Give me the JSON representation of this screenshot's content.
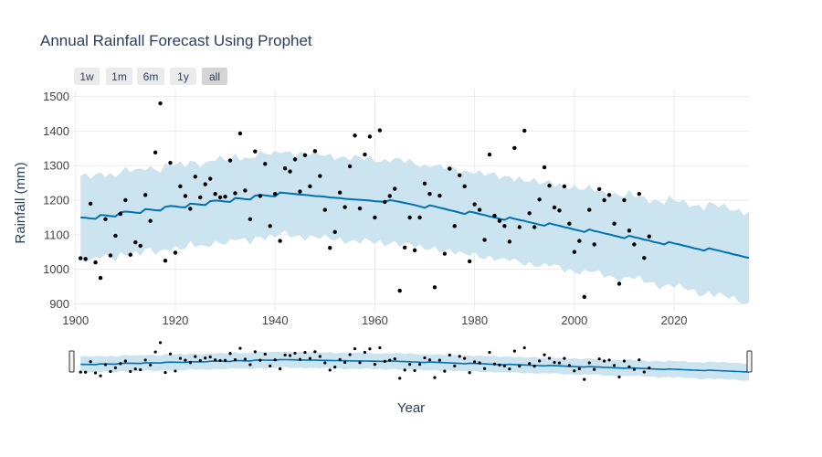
{
  "chart_data": {
    "type": "line",
    "title": "Annual Rainfall Forecast Using Prophet",
    "xlabel": "Year",
    "ylabel": "Rainfall (mm)",
    "xlim": [
      1899.5,
      2035
    ],
    "ylim": [
      880,
      1520
    ],
    "x_ticks": [
      1900,
      1920,
      1940,
      1960,
      1980,
      2000,
      2020
    ],
    "y_ticks": [
      900,
      1000,
      1100,
      1200,
      1300,
      1400,
      1500
    ],
    "grid": true,
    "range_selector": [
      "1w",
      "1m",
      "6m",
      "1y",
      "all"
    ],
    "range_selector_active": "all",
    "range_slider": true,
    "colors": {
      "forecast": "#0072b2",
      "interval": "#cce3f0",
      "actual": "#000000",
      "active_button": "#d4d4d4",
      "button": "#ebebeb"
    },
    "actual": {
      "x": [
        1901,
        1902,
        1903,
        1904,
        1905,
        1906,
        1907,
        1908,
        1909,
        1910,
        1911,
        1912,
        1913,
        1914,
        1915,
        1916,
        1917,
        1918,
        1919,
        1920,
        1921,
        1922,
        1923,
        1924,
        1925,
        1926,
        1927,
        1928,
        1929,
        1930,
        1931,
        1932,
        1933,
        1934,
        1935,
        1936,
        1937,
        1938,
        1939,
        1940,
        1941,
        1942,
        1943,
        1944,
        1945,
        1946,
        1947,
        1948,
        1949,
        1950,
        1951,
        1952,
        1953,
        1954,
        1955,
        1956,
        1957,
        1958,
        1959,
        1960,
        1961,
        1962,
        1963,
        1964,
        1965,
        1966,
        1967,
        1968,
        1969,
        1970,
        1971,
        1972,
        1973,
        1974,
        1975,
        1976,
        1977,
        1978,
        1979,
        1980,
        1981,
        1982,
        1983,
        1984,
        1985,
        1986,
        1987,
        1988,
        1989,
        1990,
        1991,
        1992,
        1993,
        1994,
        1995,
        1996,
        1997,
        1998,
        1999,
        2000,
        2001,
        2002,
        2003,
        2004,
        2005,
        2006,
        2007,
        2008,
        2009,
        2010,
        2011,
        2012,
        2013,
        2014,
        2015
      ],
      "y": [
        1032,
        1030,
        1190,
        1020,
        975,
        1145,
        1040,
        1097,
        1160,
        1200,
        1042,
        1078,
        1068,
        1215,
        1140,
        1338,
        1480,
        1025,
        1308,
        1048,
        1240,
        1212,
        1175,
        1268,
        1208,
        1246,
        1262,
        1218,
        1208,
        1210,
        1315,
        1220,
        1393,
        1228,
        1145,
        1341,
        1212,
        1305,
        1125,
        1218,
        1082,
        1292,
        1283,
        1318,
        1225,
        1330,
        1240,
        1342,
        1270,
        1172,
        1062,
        1108,
        1222,
        1180,
        1298,
        1387,
        1176,
        1332,
        1384,
        1150,
        1402,
        1195,
        1212,
        1233,
        938,
        1063,
        1150,
        1055,
        1150,
        1248,
        1218,
        948,
        1213,
        1045,
        1291,
        1125,
        1272,
        1240,
        1023,
        1188,
        1172,
        1085,
        1332,
        1155,
        1140,
        1125,
        1080,
        1351,
        1122,
        1401,
        1162,
        1122,
        1202,
        1295,
        1242,
        1179,
        1170,
        1240,
        1132,
        1050,
        1082,
        920,
        1172,
        1072,
        1232,
        1200,
        1215,
        1132,
        958,
        1200,
        1112,
        1072,
        1218,
        1033,
        1095
      ]
    },
    "forecast": {
      "x": [
        1901,
        1902,
        1903,
        1904,
        1905,
        1906,
        1907,
        1908,
        1909,
        1910,
        1911,
        1912,
        1913,
        1914,
        1915,
        1916,
        1917,
        1918,
        1919,
        1920,
        1921,
        1922,
        1923,
        1924,
        1925,
        1926,
        1927,
        1928,
        1929,
        1930,
        1931,
        1932,
        1933,
        1934,
        1935,
        1936,
        1937,
        1938,
        1939,
        1940,
        1941,
        1942,
        1943,
        1944,
        1945,
        1946,
        1947,
        1948,
        1949,
        1950,
        1951,
        1952,
        1953,
        1954,
        1955,
        1956,
        1957,
        1958,
        1959,
        1960,
        1961,
        1962,
        1963,
        1964,
        1965,
        1966,
        1967,
        1968,
        1969,
        1970,
        1971,
        1972,
        1973,
        1974,
        1975,
        1976,
        1977,
        1978,
        1979,
        1980,
        1981,
        1982,
        1983,
        1984,
        1985,
        1986,
        1987,
        1988,
        1989,
        1990,
        1991,
        1992,
        1993,
        1994,
        1995,
        1996,
        1997,
        1998,
        1999,
        2000,
        2001,
        2002,
        2003,
        2004,
        2005,
        2006,
        2007,
        2008,
        2009,
        2010,
        2011,
        2012,
        2013,
        2014,
        2015,
        2016,
        2017,
        2018,
        2019,
        2020,
        2021,
        2022,
        2023,
        2024,
        2025,
        2026,
        2027,
        2028,
        2029,
        2030,
        2031,
        2032,
        2033,
        2034,
        2035
      ],
      "y": [
        1150,
        1149,
        1147,
        1146,
        1157,
        1156,
        1154,
        1153,
        1165,
        1167,
        1166,
        1164,
        1163,
        1174,
        1173,
        1171,
        1170,
        1181,
        1183,
        1182,
        1180,
        1179,
        1190,
        1189,
        1187,
        1186,
        1197,
        1199,
        1198,
        1196,
        1195,
        1206,
        1205,
        1203,
        1202,
        1213,
        1215,
        1214,
        1212,
        1211,
        1222,
        1221,
        1219,
        1218,
        1216,
        1215,
        1214,
        1212,
        1211,
        1210,
        1208,
        1207,
        1206,
        1204,
        1203,
        1202,
        1201,
        1200,
        1199,
        1197,
        1196,
        1195,
        1200,
        1198,
        1195,
        1192,
        1189,
        1186,
        1182,
        1178,
        1185,
        1182,
        1178,
        1175,
        1171,
        1168,
        1164,
        1160,
        1167,
        1164,
        1160,
        1157,
        1153,
        1150,
        1146,
        1143,
        1150,
        1146,
        1143,
        1140,
        1136,
        1133,
        1129,
        1126,
        1133,
        1129,
        1126,
        1122,
        1119,
        1115,
        1112,
        1108,
        1115,
        1111,
        1108,
        1104,
        1101,
        1097,
        1094,
        1090,
        1097,
        1093,
        1090,
        1086,
        1083,
        1079,
        1076,
        1072,
        1079,
        1075,
        1072,
        1068,
        1065,
        1061,
        1058,
        1054,
        1061,
        1057,
        1054,
        1050,
        1047,
        1043,
        1040,
        1036,
        1033
      ]
    }
  }
}
